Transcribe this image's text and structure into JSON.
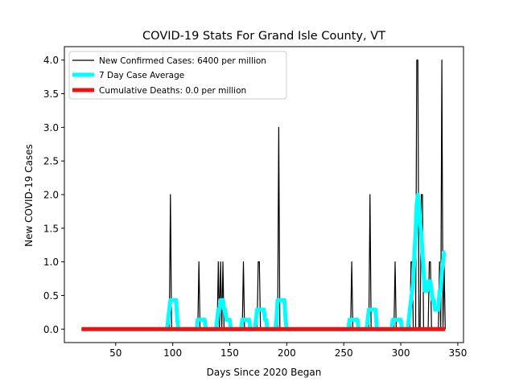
{
  "chart_data": {
    "type": "line",
    "title": "COVID-19 Stats For Grand Isle County, VT",
    "xlabel": "Days Since 2020 Began",
    "ylabel": "New COVID-19 Cases",
    "xlim": [
      5,
      355
    ],
    "ylim": [
      -0.2,
      4.2
    ],
    "xticks": [
      50,
      100,
      150,
      200,
      250,
      300,
      350
    ],
    "yticks": [
      0.0,
      0.5,
      1.0,
      1.5,
      2.0,
      2.5,
      3.0,
      3.5,
      4.0
    ],
    "ytick_labels": [
      "0.0",
      "0.5",
      "1.0",
      "1.5",
      "2.0",
      "2.5",
      "3.0",
      "3.5",
      "4.0"
    ],
    "grid": false,
    "legend_position": "upper-left",
    "colors": {
      "new_cases": "#000000",
      "avg": "#00ffff",
      "deaths": "#ee1111"
    },
    "series": [
      {
        "name": "New Confirmed Cases: 6400 per million",
        "x": [
          20,
          97,
          98,
          99,
          122,
          123,
          124,
          139,
          140,
          141,
          142,
          143,
          144,
          145,
          146,
          161,
          162,
          163,
          174,
          175,
          176,
          177,
          192,
          193,
          194,
          256,
          257,
          258,
          272,
          273,
          274,
          294,
          295,
          296,
          308,
          309,
          310,
          311,
          313,
          314,
          315,
          316,
          317,
          318,
          319,
          320,
          321,
          324,
          325,
          326,
          327,
          328,
          333,
          334,
          335,
          336,
          337,
          338,
          339
        ],
        "y": [
          0,
          0,
          2,
          0,
          0,
          1,
          0,
          0,
          1,
          0,
          1,
          0,
          1,
          0,
          0,
          0,
          1,
          0,
          0,
          1,
          1,
          0,
          0,
          3,
          0,
          0,
          1,
          0,
          0,
          2,
          0,
          0,
          1,
          0,
          0,
          1,
          1,
          0,
          0,
          4,
          4,
          0,
          0,
          2,
          2,
          0,
          0,
          0,
          1,
          1,
          0,
          0,
          0,
          1,
          0,
          4,
          0,
          1,
          0
        ]
      },
      {
        "name": "7 Day Case Average",
        "x": [
          95,
          96,
          97,
          98,
          99,
          100,
          101,
          102,
          103,
          104,
          105,
          121,
          122,
          123,
          124,
          125,
          126,
          127,
          128,
          129,
          138,
          139,
          140,
          141,
          142,
          143,
          144,
          145,
          146,
          147,
          148,
          149,
          150,
          151,
          160,
          161,
          162,
          163,
          164,
          165,
          166,
          167,
          168,
          172,
          173,
          174,
          175,
          176,
          177,
          178,
          179,
          180,
          181,
          182,
          183,
          190,
          191,
          192,
          193,
          194,
          195,
          196,
          197,
          198,
          199,
          200,
          254,
          255,
          256,
          257,
          258,
          259,
          260,
          261,
          262,
          263,
          270,
          271,
          272,
          273,
          274,
          275,
          276,
          277,
          278,
          279,
          292,
          293,
          294,
          295,
          296,
          297,
          298,
          299,
          300,
          301,
          306,
          307,
          308,
          309,
          310,
          311,
          312,
          313,
          314,
          315,
          316,
          317,
          318,
          319,
          320,
          321,
          322,
          323,
          324,
          325,
          326,
          327,
          328,
          329,
          330,
          331,
          332,
          333,
          334,
          335,
          336,
          337,
          338,
          339
        ],
        "y": [
          0,
          0.14,
          0.29,
          0.43,
          0.43,
          0.43,
          0.43,
          0.43,
          0.43,
          0.14,
          0,
          0,
          0.14,
          0.14,
          0.14,
          0.14,
          0.14,
          0.14,
          0.14,
          0,
          0,
          0.14,
          0.29,
          0.29,
          0.43,
          0.43,
          0.43,
          0.29,
          0.29,
          0.14,
          0.14,
          0.14,
          0.14,
          0,
          0,
          0.14,
          0.14,
          0.14,
          0.14,
          0.14,
          0.14,
          0.14,
          0,
          0,
          0.14,
          0.29,
          0.29,
          0.29,
          0.29,
          0.29,
          0.29,
          0.29,
          0.14,
          0.14,
          0,
          0,
          0.14,
          0.43,
          0.43,
          0.43,
          0.43,
          0.43,
          0.43,
          0.43,
          0.14,
          0,
          0,
          0.14,
          0.14,
          0.14,
          0.14,
          0.14,
          0.14,
          0.14,
          0.14,
          0,
          0,
          0.14,
          0.29,
          0.29,
          0.29,
          0.29,
          0.29,
          0.29,
          0.29,
          0,
          0,
          0.14,
          0.14,
          0.14,
          0.14,
          0.14,
          0.14,
          0.14,
          0.14,
          0,
          0,
          0.14,
          0.29,
          0.43,
          0.57,
          0.71,
          1.14,
          1.43,
          1.86,
          2.0,
          1.86,
          1.57,
          1.43,
          1.14,
          0.86,
          0.57,
          0.57,
          0.57,
          0.71,
          0.71,
          0.71,
          0.57,
          0.43,
          0.43,
          0.29,
          0.29,
          0.29,
          0.29,
          0.57,
          0.57,
          0.86,
          1.0,
          1.14,
          1.14
        ]
      },
      {
        "name": "Cumulative Deaths: 0.0 per million",
        "x": [
          20,
          339
        ],
        "y": [
          0,
          0
        ]
      }
    ]
  }
}
